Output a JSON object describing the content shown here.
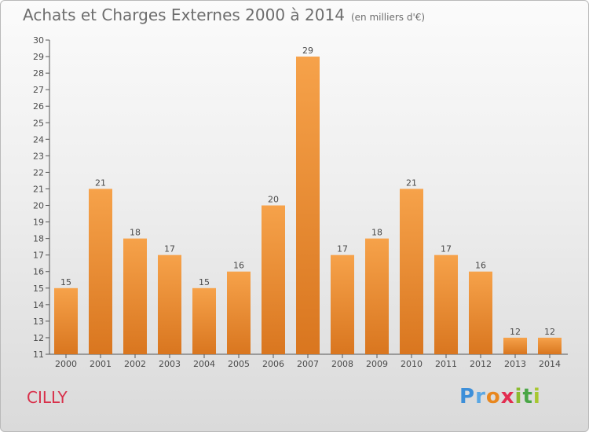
{
  "header": {
    "title": "Achats et Charges Externes 2000 à 2014",
    "unit": "(en milliers d'€)"
  },
  "footer": {
    "commune": "CILLY",
    "brand": "Proxiti"
  },
  "colors": {
    "bar_light": "#f6a24a",
    "bar_dark": "#d9761f",
    "title": "#6d6d6d",
    "commune": "#d8304a"
  },
  "chart_data": {
    "type": "bar",
    "categories": [
      "2000",
      "2001",
      "2002",
      "2003",
      "2004",
      "2005",
      "2006",
      "2007",
      "2008",
      "2009",
      "2010",
      "2011",
      "2012",
      "2013",
      "2014"
    ],
    "values": [
      15,
      21,
      18,
      17,
      15,
      16,
      20,
      29,
      17,
      18,
      21,
      17,
      16,
      12,
      12
    ],
    "title": "Achats et Charges Externes 2000 à 2014",
    "ylim": [
      11,
      30
    ],
    "yticks": [
      11,
      12,
      13,
      14,
      15,
      16,
      17,
      18,
      19,
      20,
      21,
      22,
      23,
      24,
      25,
      26,
      27,
      28,
      29,
      30
    ],
    "grid": false
  }
}
